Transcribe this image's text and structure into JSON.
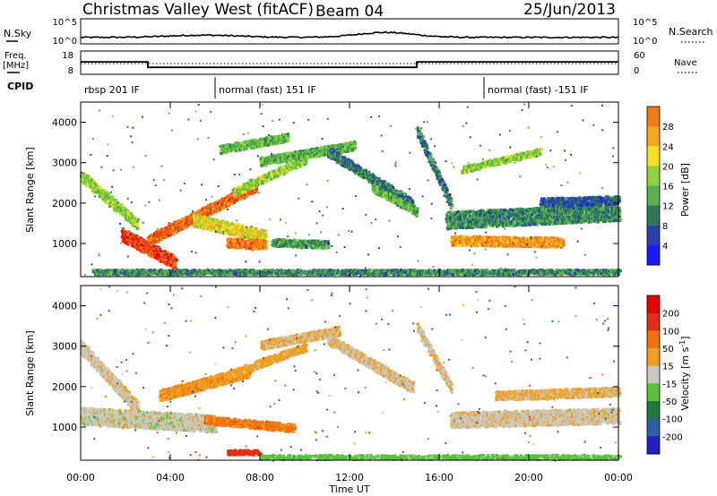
{
  "header": {
    "station": "Christmas Valley West (fitACF)",
    "beam": "Beam 04",
    "date": "25/Jun/2013"
  },
  "noise_panel": {
    "left_label": "N.Sky",
    "right_label": "N.Search",
    "ticks_left": [
      "10^5",
      "10^0"
    ],
    "ticks_right": [
      "10^5",
      "10^0"
    ]
  },
  "freq_panel": {
    "left_label_1": "Freq.",
    "left_label_2": "[MHz]",
    "right_label": "Nave",
    "ticks_left": [
      "18",
      "8"
    ],
    "ticks_right": [
      "60",
      "0"
    ]
  },
  "cpid": {
    "label": "CPID",
    "segments": [
      {
        "start_hour": 0,
        "text": "rbsp 201 IF"
      },
      {
        "start_hour": 6,
        "text": "normal (fast) 151 IF"
      },
      {
        "start_hour": 18,
        "text": "normal (fast) -151 IF"
      }
    ]
  },
  "power_colorbar": {
    "label": "Power [dB]",
    "ticks": [
      "28",
      "24",
      "20",
      "16",
      "12",
      "8",
      "4"
    ],
    "colors": [
      "#1a1aff",
      "#2a3fb0",
      "#2e7a55",
      "#54b34a",
      "#8dd23a",
      "#f5e021",
      "#f5a623",
      "#f07b17",
      "#e64010",
      "#e60000"
    ]
  },
  "velocity_colorbar": {
    "label": "Velocity [m s",
    "label_sup": "-1",
    "label_end": "]",
    "ticks": [
      "200",
      "100",
      "50",
      "15",
      "-15",
      "-50",
      "-100",
      "-200"
    ],
    "colors": [
      "#2020c8",
      "#2d5fa8",
      "#1f7a3e",
      "#55c23a",
      "#c8c8c0",
      "#f0a020",
      "#f07010",
      "#e03010",
      "#e60000"
    ]
  },
  "x_axis": {
    "label": "Time UT",
    "ticks": [
      "00:00",
      "04:00",
      "08:00",
      "12:00",
      "16:00",
      "20:00",
      "00:00"
    ]
  },
  "y_axis": {
    "label": "Slant Range [km]",
    "ticks": [
      "4000",
      "3000",
      "2000",
      "1000"
    ]
  },
  "chart_data": {
    "type": "heatmap",
    "x_range_hours": [
      0,
      24
    ],
    "y_range_km": [
      180,
      4500
    ],
    "freq_mhz": [
      {
        "from": 0,
        "to": 3,
        "value": 13.5
      },
      {
        "from": 3,
        "to": 15,
        "value": 10.2
      },
      {
        "from": 15,
        "to": 24,
        "value": 13.5
      }
    ],
    "power_features": [
      {
        "h0": 0.0,
        "h1": 2.5,
        "r0": 2700,
        "r1": 1500,
        "w": 260,
        "db": 14
      },
      {
        "h0": 1.8,
        "h1": 4.2,
        "r0": 1250,
        "r1": 550,
        "w": 320,
        "db": 27
      },
      {
        "h0": 3.0,
        "h1": 7.8,
        "r0": 1100,
        "r1": 2450,
        "w": 260,
        "db": 25
      },
      {
        "h0": 5.0,
        "h1": 8.2,
        "r0": 1600,
        "r1": 1200,
        "w": 300,
        "db": 18
      },
      {
        "h0": 6.5,
        "h1": 8.2,
        "r0": 1050,
        "r1": 1000,
        "w": 240,
        "db": 24
      },
      {
        "h0": 8.5,
        "h1": 11.0,
        "r0": 1050,
        "r1": 1000,
        "w": 180,
        "db": 10
      },
      {
        "h0": 6.8,
        "h1": 10.0,
        "r0": 2300,
        "r1": 3100,
        "w": 200,
        "db": 14
      },
      {
        "h0": 8.0,
        "h1": 12.2,
        "r0": 3050,
        "r1": 3450,
        "w": 220,
        "db": 12
      },
      {
        "h0": 6.2,
        "h1": 9.2,
        "r0": 3350,
        "r1": 3650,
        "w": 200,
        "db": 12
      },
      {
        "h0": 11.0,
        "h1": 14.8,
        "r0": 3300,
        "r1": 2000,
        "w": 240,
        "db": 8
      },
      {
        "h0": 13.0,
        "h1": 15.0,
        "r0": 2400,
        "r1": 1800,
        "w": 200,
        "db": 12
      },
      {
        "h0": 15.0,
        "h1": 16.5,
        "r0": 3800,
        "r1": 2000,
        "w": 240,
        "db": 8
      },
      {
        "h0": 16.3,
        "h1": 24.0,
        "r0": 1600,
        "r1": 1800,
        "w": 420,
        "db": 9
      },
      {
        "h0": 16.5,
        "h1": 21.5,
        "r0": 1100,
        "r1": 1050,
        "w": 240,
        "db": 22
      },
      {
        "h0": 17.0,
        "h1": 20.5,
        "r0": 2850,
        "r1": 3300,
        "w": 160,
        "db": 14
      },
      {
        "h0": 20.5,
        "h1": 24.0,
        "r0": 2050,
        "r1": 2100,
        "w": 200,
        "db": 6
      },
      {
        "h0": 0.5,
        "h1": 24.0,
        "r0": 320,
        "r1": 320,
        "w": 120,
        "db": 9
      }
    ],
    "velocity_features": [
      {
        "h0": 0.0,
        "h1": 2.5,
        "r0": 3000,
        "r1": 1500,
        "w": 320,
        "v": -5
      },
      {
        "h0": 0.0,
        "h1": 6.0,
        "r0": 1300,
        "r1": 1100,
        "w": 420,
        "v": 0
      },
      {
        "h0": 3.5,
        "h1": 7.5,
        "r0": 1800,
        "r1": 2400,
        "w": 280,
        "v": -40
      },
      {
        "h0": 5.5,
        "h1": 9.5,
        "r0": 1200,
        "r1": 1000,
        "w": 200,
        "v": -60
      },
      {
        "h0": 6.5,
        "h1": 10.0,
        "r0": 2300,
        "r1": 3000,
        "w": 200,
        "v": -30
      },
      {
        "h0": 8.0,
        "h1": 11.5,
        "r0": 3050,
        "r1": 3400,
        "w": 220,
        "v": -20
      },
      {
        "h0": 11.0,
        "h1": 14.8,
        "r0": 3200,
        "r1": 2000,
        "w": 260,
        "v": -10
      },
      {
        "h0": 15.0,
        "h1": 16.5,
        "r0": 3500,
        "r1": 2000,
        "w": 240,
        "v": -10
      },
      {
        "h0": 16.5,
        "h1": 24.0,
        "r0": 1200,
        "r1": 1300,
        "w": 380,
        "v": -5
      },
      {
        "h0": 18.5,
        "h1": 24.0,
        "r0": 1800,
        "r1": 1900,
        "w": 220,
        "v": -20
      },
      {
        "h0": 6.5,
        "h1": 8.0,
        "r0": 400,
        "r1": 400,
        "w": 120,
        "v": -150
      },
      {
        "h0": 8.0,
        "h1": 24.0,
        "r0": 280,
        "r1": 280,
        "w": 110,
        "v": 30
      }
    ]
  }
}
